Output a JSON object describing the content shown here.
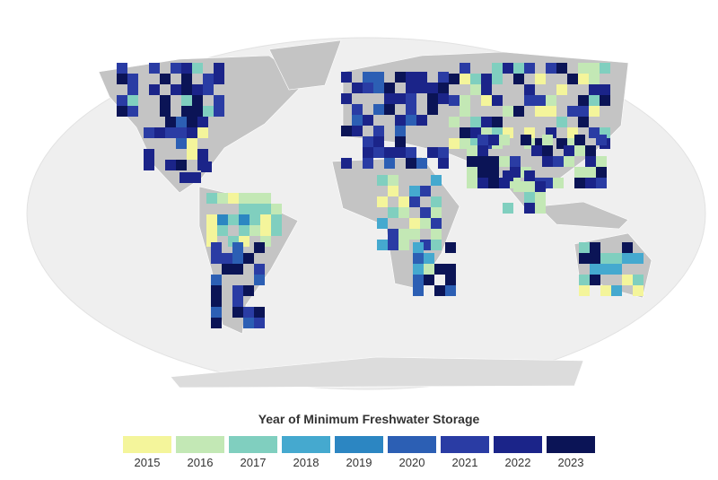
{
  "legend": {
    "title": "Year of Minimum Freshwater Storage",
    "items": [
      {
        "label": "2015",
        "color": "#f4f59b"
      },
      {
        "label": "2016",
        "color": "#c3e8b5"
      },
      {
        "label": "2017",
        "color": "#80cfbf"
      },
      {
        "label": "2018",
        "color": "#45a9cf"
      },
      {
        "label": "2019",
        "color": "#2c86c2"
      },
      {
        "label": "2020",
        "color": "#2c5fb4"
      },
      {
        "label": "2021",
        "color": "#2a3ca4"
      },
      {
        "label": "2022",
        "color": "#1b2489"
      },
      {
        "label": "2023",
        "color": "#0b1456"
      }
    ]
  }
}
